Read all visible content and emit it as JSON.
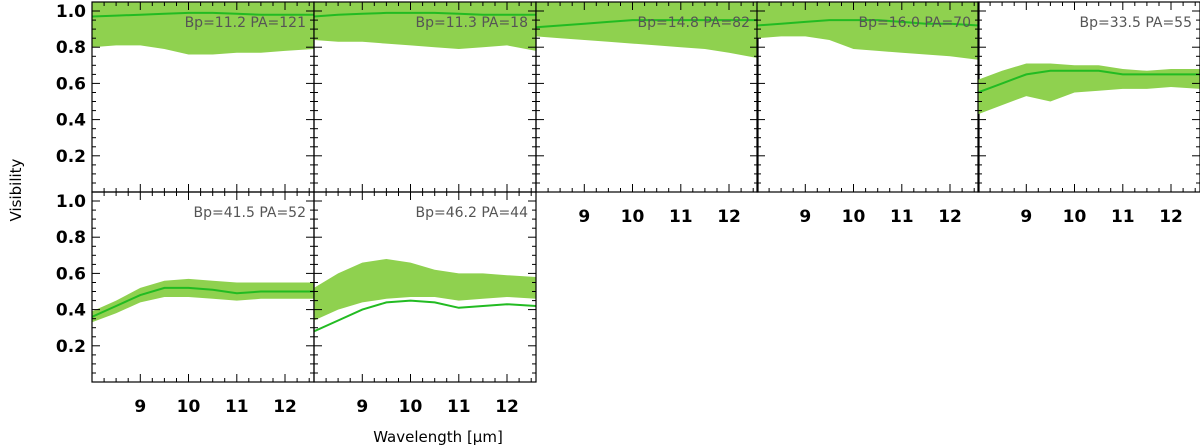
{
  "figure": {
    "ylabel": "Visibility",
    "xlabel": "Wavelength [μm]"
  },
  "style": {
    "band_color": "#8fd14f",
    "line_color": "#22bb22",
    "axis_color": "#000000",
    "annotation_color": "#555555"
  },
  "chart_data": [
    {
      "type": "area",
      "annotation": "Bp=11.2  PA=121",
      "xlim": [
        8.0,
        12.6
      ],
      "ylim": [
        0.0,
        1.05
      ],
      "x": [
        8.0,
        8.5,
        9.0,
        9.5,
        10.0,
        10.5,
        11.0,
        11.5,
        12.0,
        12.6
      ],
      "model": [
        0.97,
        0.975,
        0.98,
        0.985,
        0.99,
        0.99,
        0.985,
        0.98,
        0.98,
        0.98
      ],
      "band_lower": [
        0.8,
        0.81,
        0.81,
        0.79,
        0.76,
        0.76,
        0.77,
        0.77,
        0.78,
        0.79
      ],
      "band_upper": [
        1.05,
        1.05,
        1.05,
        1.05,
        1.05,
        1.05,
        1.05,
        1.05,
        1.05,
        1.05
      ]
    },
    {
      "type": "area",
      "annotation": "Bp=11.3  PA=18",
      "xlim": [
        8.0,
        12.6
      ],
      "ylim": [
        0.0,
        1.05
      ],
      "x": [
        8.0,
        8.5,
        9.0,
        9.5,
        10.0,
        10.5,
        11.0,
        11.5,
        12.0,
        12.6
      ],
      "model": [
        0.97,
        0.98,
        0.985,
        0.99,
        0.99,
        0.99,
        0.985,
        0.98,
        0.98,
        0.98
      ],
      "band_lower": [
        0.84,
        0.83,
        0.83,
        0.82,
        0.81,
        0.8,
        0.79,
        0.8,
        0.81,
        0.78
      ],
      "band_upper": [
        1.05,
        1.05,
        1.05,
        1.05,
        1.05,
        1.05,
        1.05,
        1.05,
        1.05,
        1.05
      ]
    },
    {
      "type": "area",
      "annotation": "Bp=14.8  PA=82",
      "xlim": [
        8.0,
        12.6
      ],
      "ylim": [
        0.0,
        1.05
      ],
      "x": [
        8.0,
        8.5,
        9.0,
        9.5,
        10.0,
        10.5,
        11.0,
        11.5,
        12.0,
        12.6
      ],
      "model": [
        0.91,
        0.92,
        0.93,
        0.94,
        0.95,
        0.95,
        0.95,
        0.95,
        0.95,
        0.95
      ],
      "band_lower": [
        0.86,
        0.85,
        0.84,
        0.83,
        0.82,
        0.81,
        0.8,
        0.79,
        0.77,
        0.74
      ],
      "band_upper": [
        1.05,
        1.05,
        1.05,
        1.05,
        1.05,
        1.05,
        1.05,
        1.05,
        1.05,
        1.05
      ]
    },
    {
      "type": "area",
      "annotation": "Bp=16.0  PA=70",
      "xlim": [
        8.0,
        12.6
      ],
      "ylim": [
        0.0,
        1.05
      ],
      "x": [
        8.0,
        8.5,
        9.0,
        9.5,
        10.0,
        10.5,
        11.0,
        11.5,
        12.0,
        12.6
      ],
      "model": [
        0.92,
        0.93,
        0.94,
        0.95,
        0.95,
        0.95,
        0.94,
        0.93,
        0.93,
        0.92
      ],
      "band_lower": [
        0.85,
        0.86,
        0.86,
        0.84,
        0.79,
        0.78,
        0.77,
        0.76,
        0.75,
        0.73
      ],
      "band_upper": [
        1.05,
        1.05,
        1.05,
        1.05,
        1.05,
        1.05,
        1.05,
        1.05,
        1.05,
        1.05
      ]
    },
    {
      "type": "area",
      "annotation": "Bp=33.5  PA=55",
      "xlim": [
        8.0,
        12.6
      ],
      "ylim": [
        0.0,
        1.05
      ],
      "x": [
        8.0,
        8.5,
        9.0,
        9.5,
        10.0,
        10.5,
        11.0,
        11.5,
        12.0,
        12.6
      ],
      "model": [
        0.55,
        0.6,
        0.65,
        0.67,
        0.67,
        0.67,
        0.65,
        0.65,
        0.65,
        0.65
      ],
      "band_lower": [
        0.43,
        0.48,
        0.53,
        0.5,
        0.55,
        0.56,
        0.57,
        0.57,
        0.58,
        0.57
      ],
      "band_upper": [
        0.62,
        0.67,
        0.71,
        0.71,
        0.7,
        0.7,
        0.68,
        0.67,
        0.68,
        0.68
      ]
    },
    {
      "type": "area",
      "annotation": "Bp=41.5  PA=52",
      "xlim": [
        8.0,
        12.6
      ],
      "ylim": [
        0.0,
        1.05
      ],
      "x": [
        8.0,
        8.5,
        9.0,
        9.5,
        10.0,
        10.5,
        11.0,
        11.5,
        12.0,
        12.6
      ],
      "model": [
        0.36,
        0.42,
        0.48,
        0.52,
        0.52,
        0.51,
        0.49,
        0.5,
        0.5,
        0.5
      ],
      "band_lower": [
        0.33,
        0.38,
        0.44,
        0.47,
        0.47,
        0.46,
        0.45,
        0.46,
        0.46,
        0.46
      ],
      "band_upper": [
        0.39,
        0.45,
        0.52,
        0.56,
        0.57,
        0.56,
        0.55,
        0.55,
        0.55,
        0.55
      ]
    },
    {
      "type": "area",
      "annotation": "Bp=46.2  PA=44",
      "xlim": [
        8.0,
        12.6
      ],
      "ylim": [
        0.0,
        1.05
      ],
      "x": [
        8.0,
        8.5,
        9.0,
        9.5,
        10.0,
        10.5,
        11.0,
        11.5,
        12.0,
        12.6
      ],
      "model": [
        0.28,
        0.34,
        0.4,
        0.44,
        0.45,
        0.44,
        0.41,
        0.42,
        0.43,
        0.42
      ],
      "band_lower": [
        0.34,
        0.4,
        0.44,
        0.46,
        0.47,
        0.47,
        0.45,
        0.46,
        0.47,
        0.46
      ],
      "band_upper": [
        0.52,
        0.6,
        0.66,
        0.68,
        0.66,
        0.62,
        0.6,
        0.6,
        0.59,
        0.58
      ]
    }
  ]
}
